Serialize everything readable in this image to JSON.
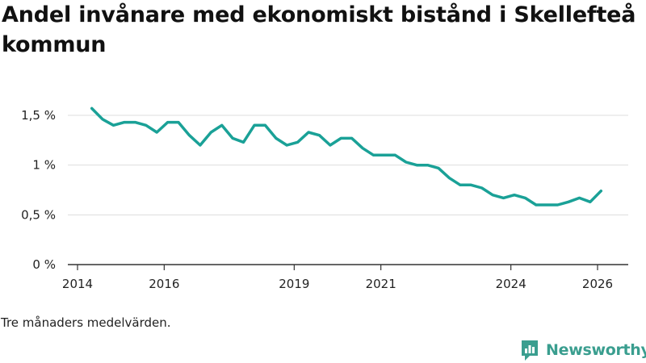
{
  "title": "Andel invånare med ekonomiskt bistånd i Skellefteå kommun",
  "note": "Tre månaders medelvärden.",
  "brand": {
    "name": "Newsworthy",
    "icon": "newsworthy-logo-icon"
  },
  "colors": {
    "line": "#1aa197",
    "grid": "#dddddd",
    "axis": "#333333",
    "brand": "#3a9e8f"
  },
  "chart_data": {
    "type": "line",
    "title": "Andel invånare med ekonomiskt bistånd i Skellefteå kommun",
    "xlabel": "",
    "ylabel": "",
    "xlim": [
      2014.0,
      2026.7
    ],
    "ylim": [
      0,
      1.5
    ],
    "grid": true,
    "legend": "none",
    "y_ticks": [
      {
        "value": 0,
        "label": "0 %"
      },
      {
        "value": 0.5,
        "label": "0,5 %"
      },
      {
        "value": 1,
        "label": "1 %"
      },
      {
        "value": 1.5,
        "label": "1,5 %"
      }
    ],
    "x_ticks": [
      {
        "value": 2014.0,
        "label": "2014"
      },
      {
        "value": 2016.0,
        "label": "2016"
      },
      {
        "value": 2019.0,
        "label": "2019"
      },
      {
        "value": 2021.0,
        "label": "2021"
      },
      {
        "value": 2024.0,
        "label": "2024"
      },
      {
        "value": 2026.0,
        "label": "2026"
      }
    ],
    "series": [
      {
        "name": "Andel invånare med ekonomiskt bistånd",
        "x": [
          2014.33,
          2014.58,
          2014.83,
          2015.08,
          2015.33,
          2015.58,
          2015.83,
          2016.08,
          2016.33,
          2016.58,
          2016.83,
          2017.08,
          2017.33,
          2017.58,
          2017.83,
          2018.08,
          2018.33,
          2018.58,
          2018.83,
          2019.08,
          2019.33,
          2019.58,
          2019.83,
          2020.08,
          2020.33,
          2020.58,
          2020.83,
          2021.08,
          2021.33,
          2021.58,
          2021.83,
          2022.08,
          2022.33,
          2022.58,
          2022.83,
          2023.08,
          2023.33,
          2023.58,
          2023.83,
          2024.08,
          2024.33,
          2024.58,
          2024.83,
          2025.08,
          2025.33,
          2025.58,
          2025.83,
          2026.08
        ],
        "values": [
          1.57,
          1.46,
          1.4,
          1.43,
          1.43,
          1.4,
          1.33,
          1.43,
          1.43,
          1.3,
          1.2,
          1.33,
          1.4,
          1.27,
          1.23,
          1.4,
          1.4,
          1.27,
          1.2,
          1.23,
          1.33,
          1.3,
          1.2,
          1.27,
          1.27,
          1.17,
          1.1,
          1.1,
          1.1,
          1.03,
          1.0,
          1.0,
          0.97,
          0.87,
          0.8,
          0.8,
          0.77,
          0.7,
          0.67,
          0.7,
          0.67,
          0.6,
          0.6,
          0.6,
          0.63,
          0.67,
          0.63,
          0.74
        ]
      }
    ]
  }
}
